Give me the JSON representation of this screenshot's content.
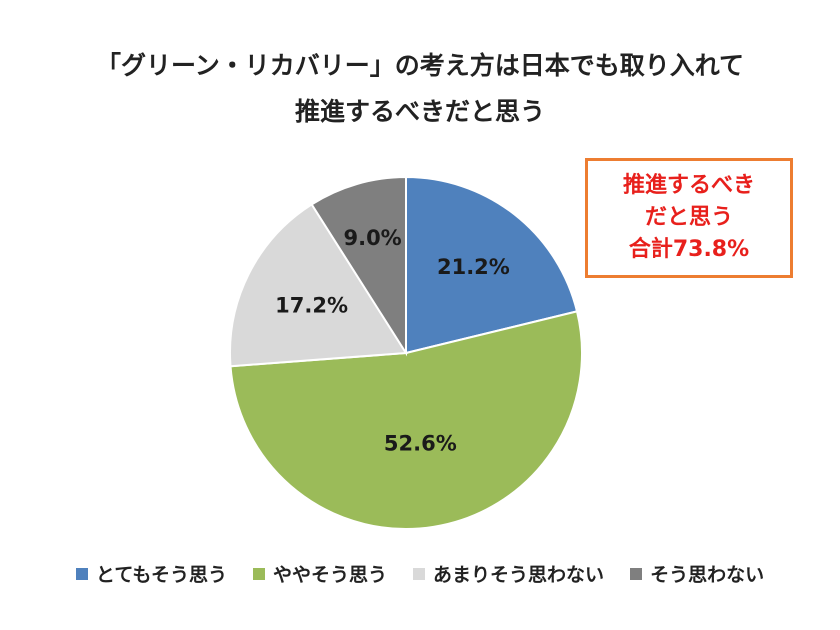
{
  "chart_data": {
    "type": "pie",
    "title": [
      "「グリーン・リカバリー」の考え方は日本でも取り入れて",
      "推進するべきだと思う"
    ],
    "categories": [
      "とてもそう思う",
      "ややそう思う",
      "あまりそう思わない",
      "そう思わない"
    ],
    "values": [
      21.2,
      52.6,
      17.2,
      9.0
    ],
    "value_labels": [
      "21.2%",
      "52.6%",
      "17.2%",
      "9.0%"
    ],
    "colors": [
      "#4f81bd",
      "#9bbb59",
      "#d9d9d9",
      "#7f7f7f"
    ],
    "legend_placement": "bottom",
    "annotation": [
      "推進するべき",
      "だと思う",
      "合計73.8%"
    ],
    "annotation_border_color": "#ed7d31",
    "annotation_text_color": "#e8201c"
  }
}
